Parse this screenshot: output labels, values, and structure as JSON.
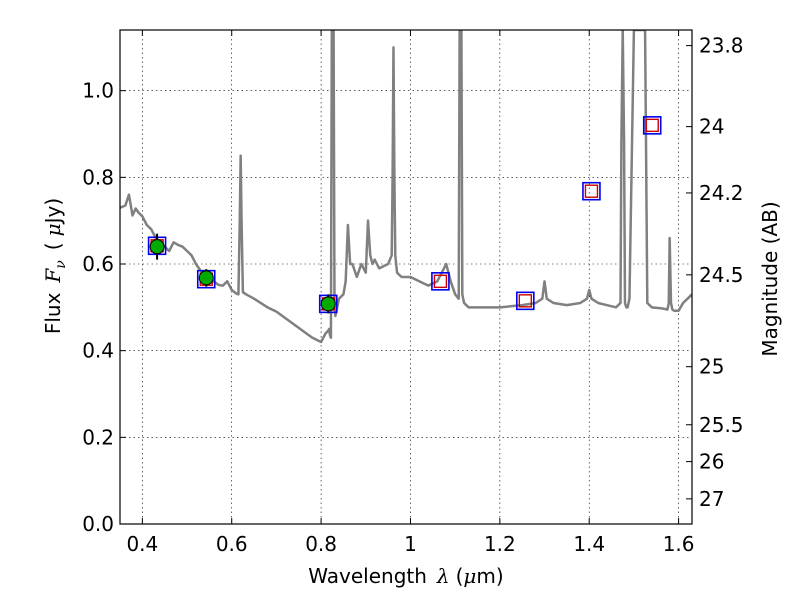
{
  "chart_data": {
    "type": "line",
    "xlabel_text": "Wavelength",
    "xlabel_math": "λ",
    "xlabel_unit_open": "(",
    "xlabel_unit_mu": "μ",
    "xlabel_unit_rest": "m)",
    "ylabel_text": "Flux",
    "ylabel_math": "F",
    "ylabel_sub": "ν",
    "ylabel_unit_open": "(",
    "ylabel_unit_mu": "μ",
    "ylabel_unit_rest": "Jy)",
    "y2label": "Magnitude (AB)",
    "xlim": [
      0.35,
      1.63
    ],
    "ylim": [
      0.0,
      1.14
    ],
    "grid": true,
    "x_ticks": [
      0.4,
      0.6,
      0.8,
      1.0,
      1.2,
      1.4,
      1.6
    ],
    "x_tick_labels": [
      "0.4",
      "0.6",
      "0.8",
      "1",
      "1.2",
      "1.4",
      "1.6"
    ],
    "y_ticks": [
      0.0,
      0.2,
      0.4,
      0.6,
      0.8,
      1.0
    ],
    "y_tick_labels": [
      "0.0",
      "0.2",
      "0.4",
      "0.6",
      "0.8",
      "1.0"
    ],
    "y2_ticks": [
      {
        "label": "23.8",
        "flux": 1.104
      },
      {
        "label": "24",
        "flux": 0.917
      },
      {
        "label": "24.2",
        "flux": 0.764
      },
      {
        "label": "24.5",
        "flux": 0.575
      },
      {
        "label": "25",
        "flux": 0.363
      },
      {
        "label": "25.5",
        "flux": 0.229
      },
      {
        "label": "26",
        "flux": 0.144
      },
      {
        "label": "27",
        "flux": 0.058
      }
    ],
    "series": [
      {
        "name": "model_spectrum",
        "color": "#808080",
        "x": [
          0.35,
          0.362,
          0.37,
          0.378,
          0.385,
          0.392,
          0.4,
          0.41,
          0.42,
          0.43,
          0.44,
          0.45,
          0.46,
          0.47,
          0.48,
          0.49,
          0.5,
          0.51,
          0.52,
          0.53,
          0.54,
          0.55,
          0.56,
          0.57,
          0.58,
          0.59,
          0.6,
          0.61,
          0.615,
          0.618,
          0.62,
          0.622,
          0.625,
          0.632,
          0.65,
          0.68,
          0.7,
          0.72,
          0.74,
          0.76,
          0.78,
          0.8,
          0.805,
          0.81,
          0.815,
          0.818,
          0.82,
          0.822,
          0.824,
          0.826,
          0.828,
          0.83,
          0.832,
          0.84,
          0.85,
          0.855,
          0.86,
          0.865,
          0.87,
          0.88,
          0.89,
          0.9,
          0.905,
          0.91,
          0.915,
          0.92,
          0.93,
          0.94,
          0.95,
          0.958,
          0.96,
          0.962,
          0.964,
          0.966,
          0.97,
          0.98,
          1.0,
          1.02,
          1.04,
          1.06,
          1.07,
          1.08,
          1.09,
          1.1,
          1.108,
          1.11,
          1.112,
          1.114,
          1.116,
          1.12,
          1.13,
          1.15,
          1.2,
          1.25,
          1.28,
          1.295,
          1.3,
          1.305,
          1.32,
          1.35,
          1.38,
          1.395,
          1.4,
          1.405,
          1.42,
          1.44,
          1.46,
          1.47,
          1.472,
          1.475,
          1.478,
          1.48,
          1.483,
          1.486,
          1.49,
          1.5,
          1.51,
          1.515,
          1.52,
          1.525,
          1.53,
          1.54,
          1.56,
          1.575,
          1.578,
          1.58,
          1.583,
          1.586,
          1.59,
          1.6,
          1.61,
          1.62,
          1.63
        ],
        "y": [
          0.73,
          0.735,
          0.76,
          0.712,
          0.728,
          0.718,
          0.71,
          0.69,
          0.68,
          0.66,
          0.648,
          0.64,
          0.63,
          0.65,
          0.644,
          0.64,
          0.63,
          0.62,
          0.6,
          0.585,
          0.575,
          0.57,
          0.56,
          0.552,
          0.55,
          0.56,
          0.54,
          0.532,
          0.53,
          0.7,
          0.85,
          0.7,
          0.535,
          0.53,
          0.52,
          0.5,
          0.49,
          0.475,
          0.46,
          0.445,
          0.43,
          0.42,
          0.43,
          0.44,
          0.445,
          0.45,
          0.435,
          0.43,
          1.14,
          1.14,
          1.14,
          0.5,
          0.48,
          0.52,
          0.53,
          0.56,
          0.69,
          0.6,
          0.6,
          0.57,
          0.6,
          0.58,
          0.7,
          0.62,
          0.6,
          0.61,
          0.59,
          0.595,
          0.6,
          0.62,
          0.8,
          1.1,
          0.8,
          0.62,
          0.58,
          0.57,
          0.57,
          0.56,
          0.55,
          0.56,
          0.58,
          0.6,
          0.56,
          0.53,
          0.52,
          1.14,
          1.14,
          1.14,
          0.53,
          0.51,
          0.5,
          0.5,
          0.5,
          0.505,
          0.51,
          0.52,
          0.56,
          0.52,
          0.51,
          0.505,
          0.51,
          0.52,
          0.54,
          0.52,
          0.51,
          0.505,
          0.5,
          0.51,
          0.88,
          1.14,
          0.88,
          0.51,
          0.5,
          0.5,
          0.52,
          1.14,
          1.14,
          1.14,
          1.14,
          1.14,
          0.51,
          0.5,
          0.498,
          0.495,
          0.51,
          0.66,
          0.51,
          0.495,
          0.492,
          0.492,
          0.51,
          0.52,
          0.53
        ]
      },
      {
        "name": "observed_green",
        "color": "#00aa00",
        "x": [
          0.433,
          0.543,
          0.816
        ],
        "y": [
          0.64,
          0.568,
          0.508
        ],
        "yerr": [
          0.03,
          0.02,
          0.022
        ]
      },
      {
        "name": "model_flux_red",
        "color": "#cc0000",
        "x": [
          0.433,
          0.543,
          0.816,
          1.067,
          1.257,
          1.405,
          1.541
        ],
        "y": [
          0.642,
          0.565,
          0.508,
          0.56,
          0.515,
          0.768,
          0.92
        ]
      },
      {
        "name": "model_flux_blue",
        "color": "#0000ee",
        "x": [
          0.433,
          0.543,
          0.816,
          1.067,
          1.257,
          1.405,
          1.541
        ],
        "y": [
          0.642,
          0.565,
          0.508,
          0.56,
          0.515,
          0.768,
          0.92
        ]
      }
    ]
  }
}
